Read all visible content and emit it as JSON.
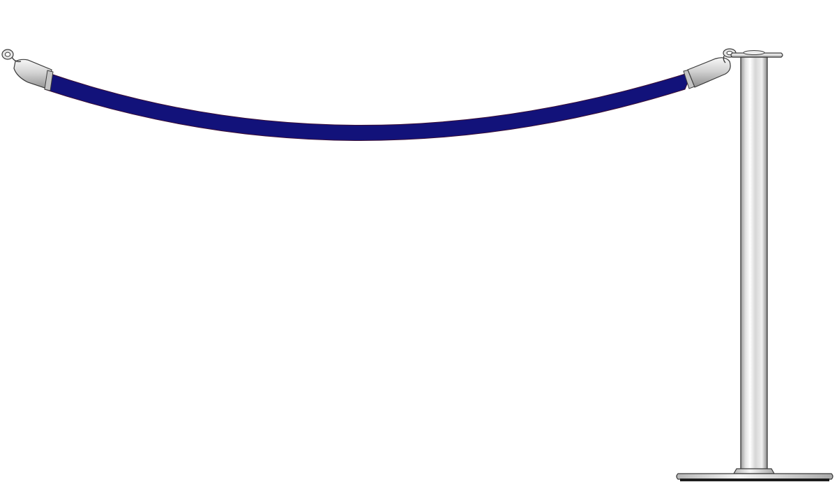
{
  "colors": {
    "background": "#ffffff",
    "rope": "#12127a",
    "rope_edge": "#5a1a2a",
    "metal_light": "#f4f4f4",
    "metal_mid": "#cfcfcf",
    "metal_dark": "#8e8e8e",
    "outline": "#3a3a3a"
  }
}
